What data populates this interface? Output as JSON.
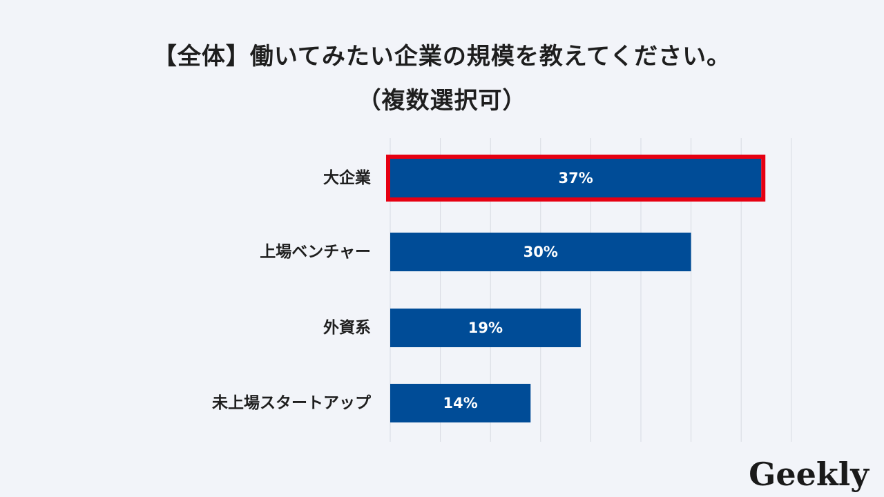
{
  "title": {
    "line1": "【全体】働いてみたい企業の規模を教えてください。",
    "line2": "（複数選択可）"
  },
  "chart_data": {
    "type": "bar",
    "orientation": "horizontal",
    "categories": [
      "大企業",
      "上場ベンチャー",
      "外資系",
      "未上場スタートアップ"
    ],
    "values": [
      37,
      30,
      19,
      14
    ],
    "value_labels": [
      "37%",
      "30%",
      "19%",
      "14%"
    ],
    "unit": "%",
    "xlim": [
      0,
      40
    ],
    "grid": true,
    "highlighted_category": "大企業",
    "colors": {
      "bar": "#004c97",
      "highlight_border": "#e60012",
      "grid": "#d7dae2"
    }
  },
  "brand": {
    "logo_text": "Geekly"
  }
}
